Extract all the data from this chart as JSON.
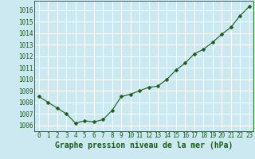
{
  "x": [
    0,
    1,
    2,
    3,
    4,
    5,
    6,
    7,
    8,
    9,
    10,
    11,
    12,
    13,
    14,
    15,
    16,
    17,
    18,
    19,
    20,
    21,
    22,
    23
  ],
  "y": [
    1008.5,
    1008.0,
    1007.5,
    1007.0,
    1006.2,
    1006.4,
    1006.3,
    1006.5,
    1007.3,
    1008.5,
    1008.7,
    1009.0,
    1009.3,
    1009.4,
    1010.0,
    1010.8,
    1011.4,
    1012.2,
    1012.6,
    1013.2,
    1013.9,
    1014.5,
    1015.5,
    1016.3
  ],
  "line_color": "#1a5e1a",
  "marker": "D",
  "marker_size": 2.5,
  "bg_color": "#cce8f0",
  "grid_color": "#ffffff",
  "xlabel": "Graphe pression niveau de la mer (hPa)",
  "xlabel_color": "#1a5e1a",
  "xlabel_fontsize": 7,
  "tick_label_color": "#1a5e1a",
  "tick_fontsize": 5.5,
  "ylim": [
    1005.5,
    1016.8
  ],
  "yticks": [
    1006,
    1007,
    1008,
    1009,
    1010,
    1011,
    1012,
    1013,
    1014,
    1015,
    1016
  ],
  "xlim": [
    -0.5,
    23.5
  ],
  "xticks": [
    0,
    1,
    2,
    3,
    4,
    5,
    6,
    7,
    8,
    9,
    10,
    11,
    12,
    13,
    14,
    15,
    16,
    17,
    18,
    19,
    20,
    21,
    22,
    23
  ],
  "xtick_labels": [
    "0",
    "1",
    "2",
    "3",
    "4",
    "5",
    "6",
    "7",
    "8",
    "9",
    "10",
    "11",
    "12",
    "13",
    "14",
    "15",
    "16",
    "17",
    "18",
    "19",
    "20",
    "21",
    "22",
    "23"
  ]
}
